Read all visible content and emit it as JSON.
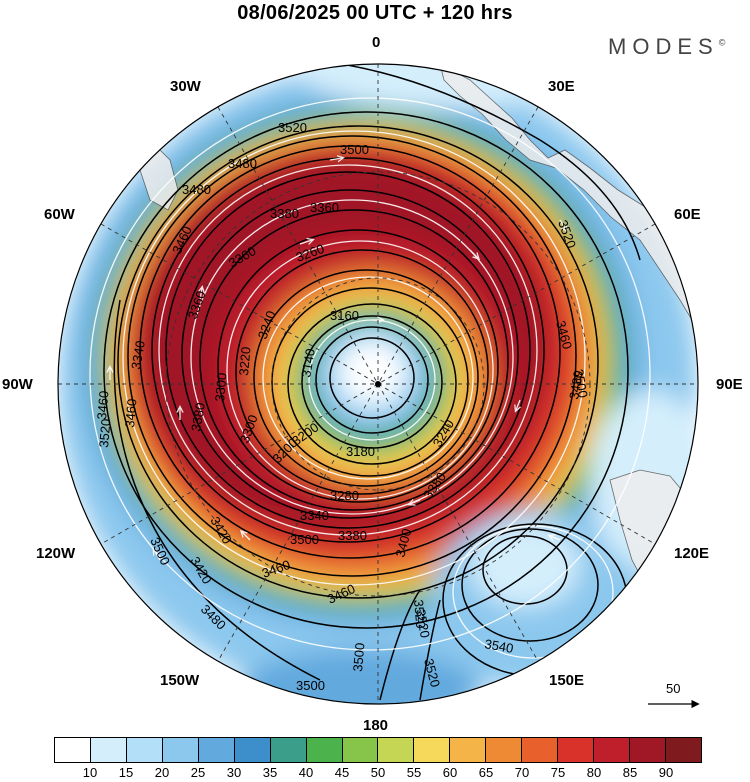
{
  "header": {
    "title": "08/06/2025  00 UTC  + 120 hrs",
    "brand": "MODES",
    "brand_mark": "©"
  },
  "longitude_labels": {
    "n0": "0",
    "e30": "30E",
    "e60": "60E",
    "e90": "90E",
    "e120": "120E",
    "e150": "150E",
    "s180": "180",
    "w150": "150W",
    "w120": "120W",
    "w90": "90W",
    "w60": "60W",
    "w30": "30W"
  },
  "contour_labels": [
    "3520",
    "3500",
    "3480",
    "3480",
    "3380",
    "3360",
    "3260",
    "3520",
    "3460",
    "3360",
    "3460",
    "3360",
    "3240",
    "3160",
    "3340",
    "3140",
    "3460",
    "3220",
    "3300",
    "3180",
    "3200",
    "3460",
    "3380",
    "3300",
    "3200",
    "3240",
    "3500",
    "3480",
    "3520",
    "3420",
    "3340",
    "3280",
    "3380",
    "3500",
    "3380",
    "3420",
    "3460",
    "3400",
    "3480",
    "3460",
    "3520",
    "3540",
    "3500",
    "3500",
    "3520",
    "3520",
    "3500"
  ],
  "reference_vector": {
    "label": "50"
  },
  "colorbar": {
    "colors": [
      "#ffffff",
      "#d4eefc",
      "#b4dff8",
      "#8cc8ee",
      "#62a9de",
      "#3d8fcc",
      "#3a9e8a",
      "#4cb24c",
      "#86c54a",
      "#c4d654",
      "#f6d85a",
      "#f4b448",
      "#ef8a34",
      "#e8602c",
      "#d8322a",
      "#bf1e2b",
      "#a01826",
      "#7f1a1e"
    ],
    "labels": [
      "10",
      "15",
      "20",
      "25",
      "30",
      "35",
      "40",
      "45",
      "50",
      "55",
      "60",
      "65",
      "70",
      "75",
      "80",
      "85",
      "90"
    ]
  }
}
